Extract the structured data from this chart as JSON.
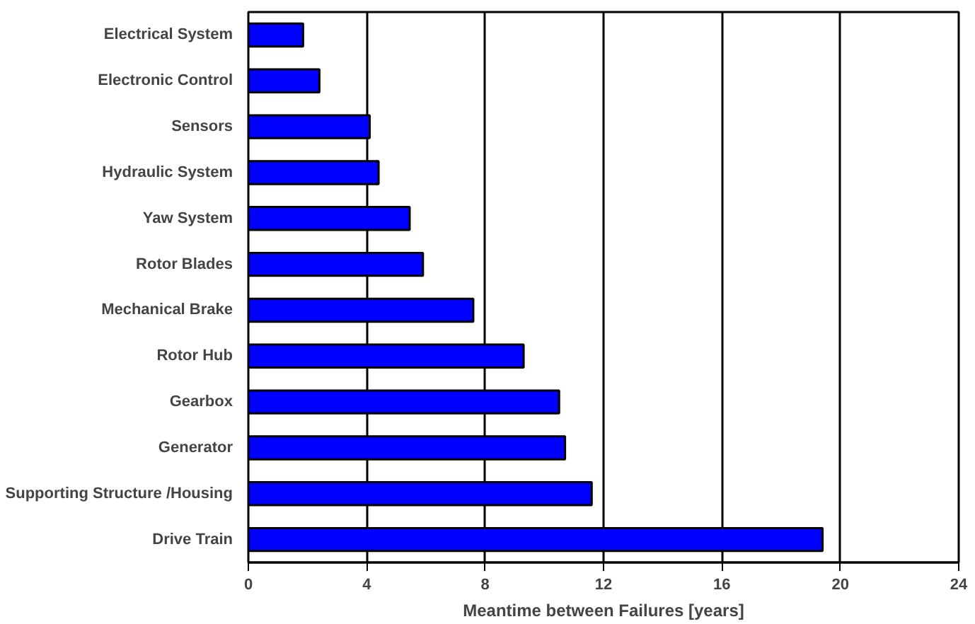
{
  "chart_data": {
    "type": "bar",
    "orientation": "horizontal",
    "xlabel": "Meantime between Failures [years]",
    "categories": [
      "Electrical System",
      "Electronic Control",
      "Sensors",
      "Hydraulic System",
      "Yaw System",
      "Rotor Blades",
      "Mechanical Brake",
      "Rotor Hub",
      "Gearbox",
      "Generator",
      "Supporting Structure /Housing",
      "Drive Train"
    ],
    "values": [
      1.85,
      2.4,
      4.1,
      4.4,
      5.45,
      5.9,
      7.6,
      9.3,
      10.5,
      10.7,
      11.6,
      19.4
    ],
    "color": "#0000ff",
    "xlim": [
      0,
      24
    ],
    "xticks": [
      0,
      4,
      8,
      12,
      16,
      20,
      24
    ],
    "grid": "x"
  }
}
